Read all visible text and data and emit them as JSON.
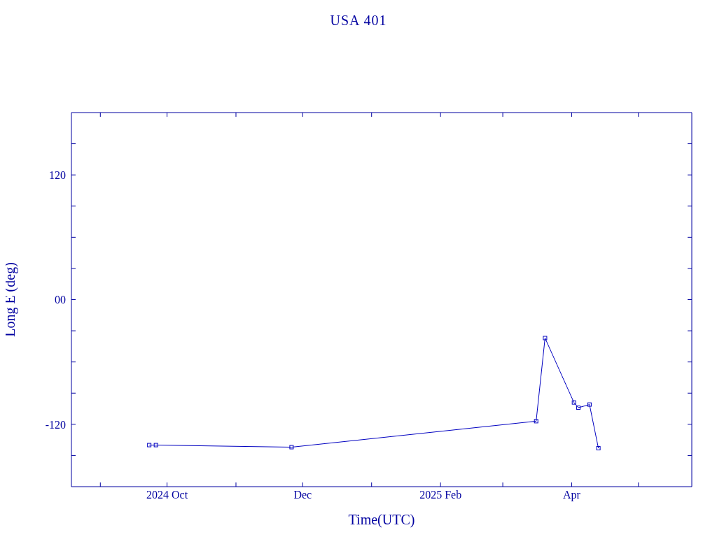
{
  "chart_data": {
    "type": "line",
    "title": "USA 401",
    "xlabel": "Time(UTC)",
    "ylabel": "Long E (deg)",
    "x": [
      "2024-09-23",
      "2024-09-26",
      "2024-11-26",
      "2025-03-16",
      "2025-03-20",
      "2025-04-02",
      "2025-04-04",
      "2025-04-09",
      "2025-04-13"
    ],
    "series": [
      {
        "color": "#0000c0",
        "values": [
          -140,
          -140,
          -142,
          -117,
          -37,
          -99,
          -104,
          -101,
          -143
        ]
      }
    ],
    "xlim": [
      "2024-08-19",
      "2025-05-25"
    ],
    "xticks": [
      {
        "value": "2024-09-01",
        "label": null
      },
      {
        "value": "2024-10-01",
        "label": "2024 Oct"
      },
      {
        "value": "2024-11-01",
        "label": null
      },
      {
        "value": "2024-12-01",
        "label": "Dec"
      },
      {
        "value": "2025-01-01",
        "label": null
      },
      {
        "value": "2025-02-01",
        "label": "2025 Feb"
      },
      {
        "value": "2025-03-01",
        "label": null
      },
      {
        "value": "2025-04-01",
        "label": "Apr"
      },
      {
        "value": "2025-05-01",
        "label": null
      }
    ],
    "ylim": [
      -180,
      180
    ],
    "yticks": [
      {
        "value": -150,
        "label": null
      },
      {
        "value": -120,
        "label": "-120"
      },
      {
        "value": -90,
        "label": null
      },
      {
        "value": -60,
        "label": null
      },
      {
        "value": -30,
        "label": null
      },
      {
        "value": 0,
        "label": "00"
      },
      {
        "value": 30,
        "label": null
      },
      {
        "value": 60,
        "label": null
      },
      {
        "value": 90,
        "label": null
      },
      {
        "value": 120,
        "label": "120"
      },
      {
        "value": 150,
        "label": null
      }
    ],
    "grid": false,
    "legend": false,
    "marker": "square",
    "line_style": "solid"
  }
}
